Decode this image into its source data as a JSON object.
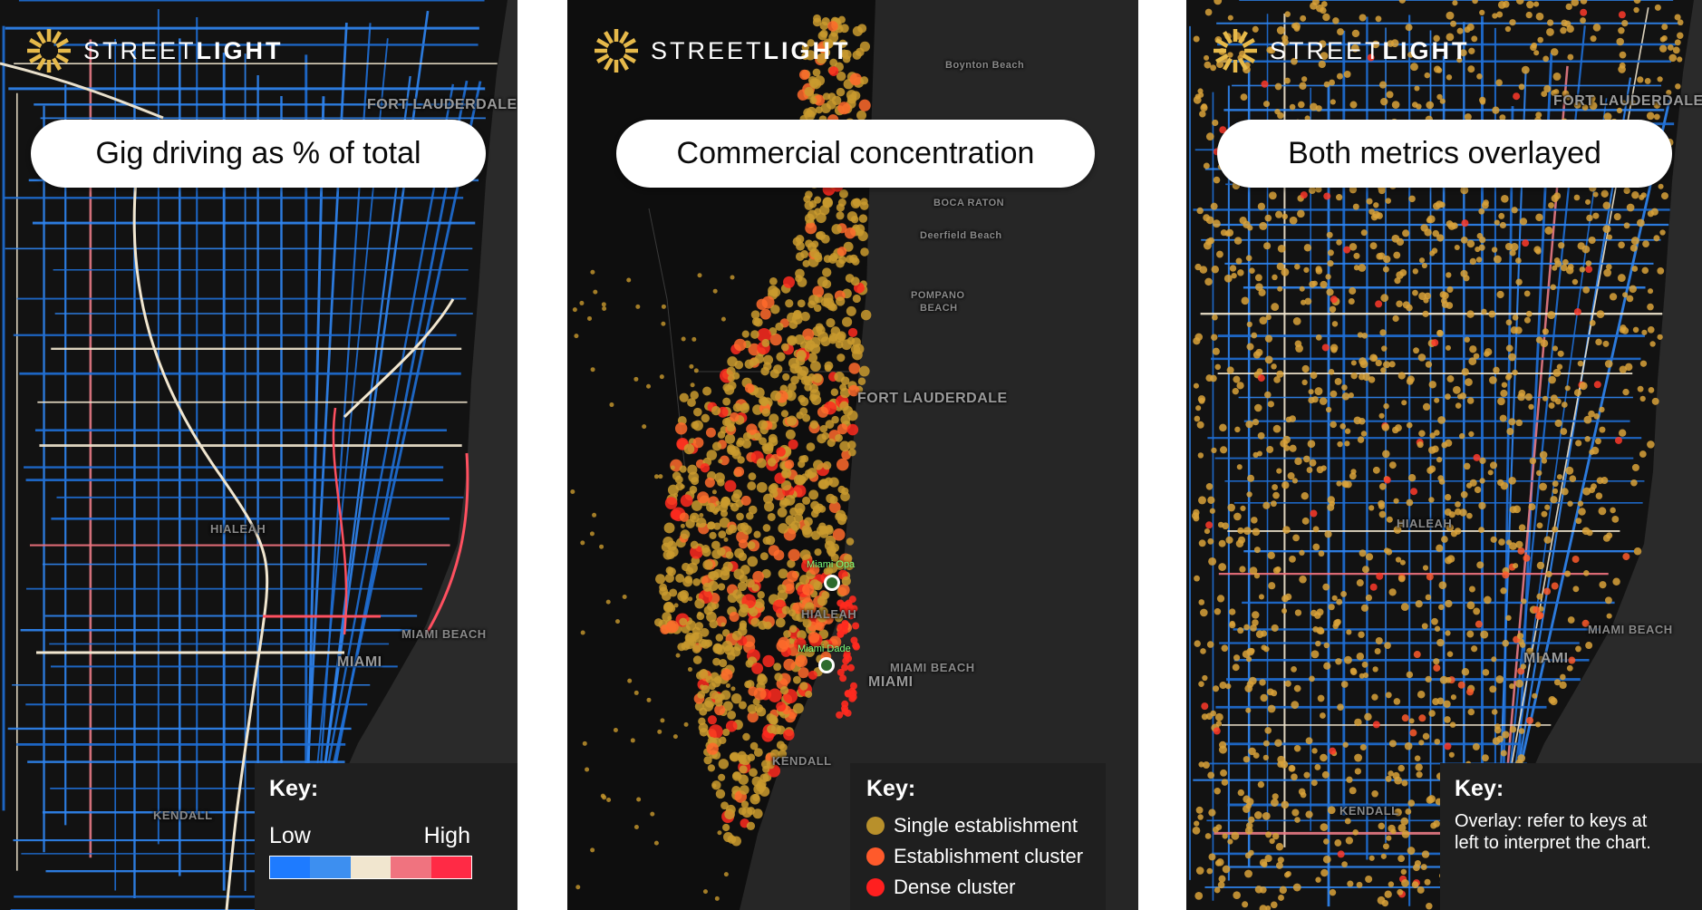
{
  "brand": {
    "prefix": "STREET",
    "suffix": "LIGHT"
  },
  "panels": [
    {
      "title": "Gig driving as % of total",
      "labels": {
        "fort_lauderdale": "FORT LAUDERDALE",
        "hialeah": "HIALEAH",
        "miami_beach": "MIAMI BEACH",
        "miami": "MIAMI",
        "kendall": "KENDALL"
      },
      "key": {
        "title": "Key:",
        "low": "Low",
        "high": "High",
        "ramp_colors": [
          "#1e7bff",
          "#3d8ff0",
          "#f1e6cf",
          "#f0737f",
          "#ff2a45"
        ]
      }
    },
    {
      "title": "Commercial concentration",
      "labels": {
        "boynton_beach": "Boynton Beach",
        "boca_raton": "BOCA RATON",
        "deerfield_beach": "Deerfield Beach",
        "pompano_beach_1": "POMPANO",
        "pompano_beach_2": "BEACH",
        "fort_lauderdale": "FORT LAUDERDALE",
        "hialeah": "HIALEAH",
        "miami_beach": "MIAMI BEACH",
        "miami": "MIAMI",
        "kendall": "KENDALL",
        "miami_opa": "Miami Opa",
        "miami_dade": "Miami Dade"
      },
      "key": {
        "title": "Key:",
        "items": [
          {
            "label": "Single establishment",
            "color": "#b8902b"
          },
          {
            "label": "Establishment cluster",
            "color": "#ff5a2b"
          },
          {
            "label": "Dense cluster",
            "color": "#ff1f1f"
          }
        ]
      }
    },
    {
      "title": "Both metrics overlayed",
      "labels": {
        "fort_lauderdale": "FORT LAUDERDALE",
        "hialeah": "HIALEAH",
        "miami_beach": "MIAMI BEACH",
        "miami": "MIAMI",
        "kendall": "KENDALL"
      },
      "key": {
        "title": "Key:",
        "note": "Overlay: refer to keys at left to interpret the chart."
      }
    }
  ]
}
